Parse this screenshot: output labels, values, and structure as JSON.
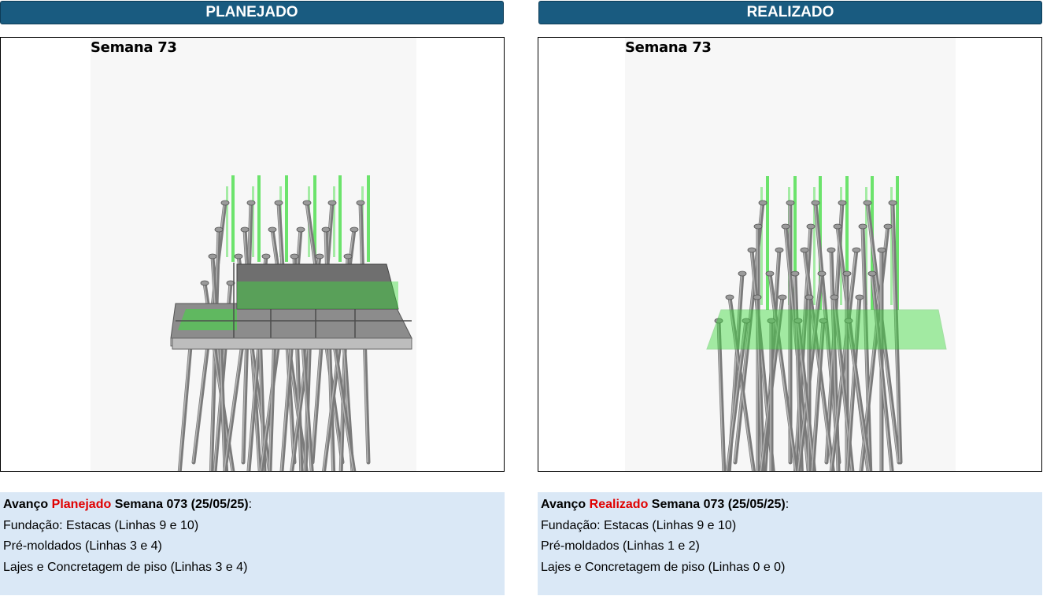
{
  "panels": {
    "planned": {
      "header": "PLANEJADO",
      "week_label": "Semana 73",
      "info": {
        "prefix": "Avanço",
        "status": "Planejado",
        "suffix": "Semana 073 (25/05/25)",
        "colon": ":",
        "lines": [
          "Fundação: Estacas (Linhas 9 e 10)",
          "Pré-moldados (Linhas 3 e 4)",
          "Lajes e Concretagem de piso (Linhas 3 e 4)"
        ]
      }
    },
    "actual": {
      "header": "REALIZADO",
      "week_label": "Semana 73",
      "info": {
        "prefix": "Avanço",
        "status": "Realizado",
        "suffix": "Semana 073 (25/05/25)",
        "colon": ":",
        "lines": [
          "Fundação: Estacas (Linhas 9 e 10)",
          "Pré-moldados (Linhas 1 e 2)",
          "Lajes e Concretagem de piso (Linhas 0 e 0)"
        ]
      }
    }
  },
  "colors": {
    "header_bg": "#195b80",
    "info_bg": "#dae8f6",
    "accent_red": "#e00000",
    "pile_gray": "#7a7a7a",
    "planned_green": "#3ddc3d",
    "slab_gray": "#8c8c8c"
  }
}
